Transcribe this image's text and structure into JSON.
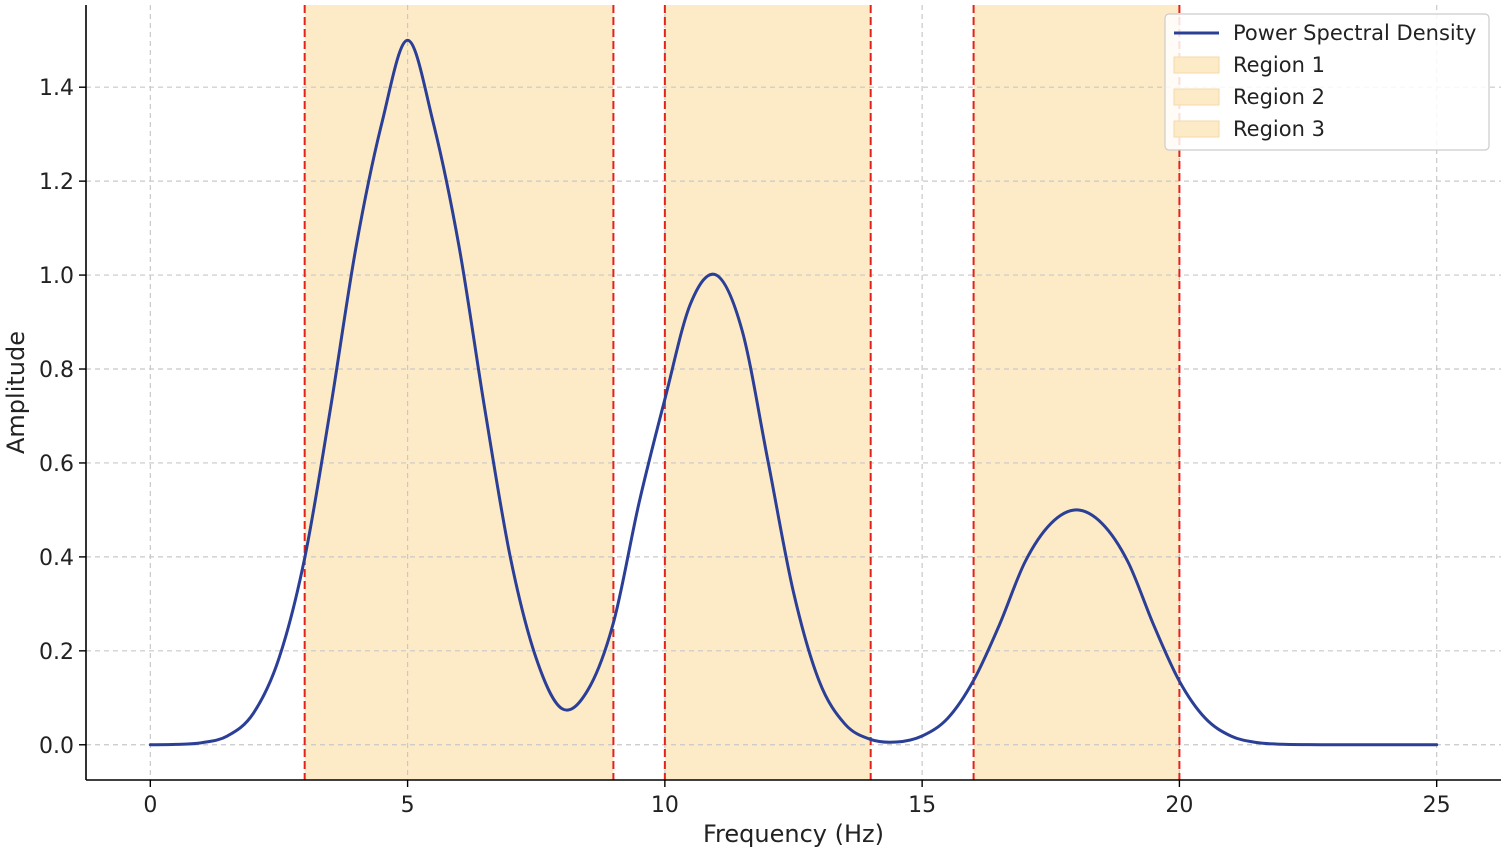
{
  "chart_data": {
    "type": "line",
    "title": "",
    "xlabel": "Frequency (Hz)",
    "ylabel": "Amplitude",
    "xlim": [
      -1.25,
      26.25
    ],
    "ylim": [
      -0.075,
      1.575
    ],
    "x_ticks": [
      0,
      5,
      10,
      15,
      20,
      25
    ],
    "x_tick_labels": [
      "0",
      "5",
      "10",
      "15",
      "20",
      "25"
    ],
    "y_ticks": [
      0.0,
      0.2,
      0.4,
      0.6,
      0.8,
      1.0,
      1.2,
      1.4
    ],
    "y_tick_labels": [
      "0.0",
      "0.2",
      "0.4",
      "0.6",
      "0.8",
      "1.0",
      "1.2",
      "1.4"
    ],
    "grid": true,
    "legend_position": "top-right",
    "series": [
      {
        "name": "Power Spectral Density",
        "color": "#2b3f96",
        "x": [
          0,
          0.5,
          1,
          1.5,
          2,
          2.5,
          3,
          3.5,
          4,
          4.5,
          5,
          5.5,
          6,
          6.5,
          7,
          7.5,
          8,
          8.5,
          9,
          9.5,
          10,
          10.5,
          11,
          11.5,
          12,
          12.5,
          13,
          13.5,
          14,
          14.5,
          15,
          15.5,
          16,
          16.5,
          17,
          17.5,
          18,
          18.5,
          19,
          19.5,
          20,
          20.5,
          21,
          21.5,
          22,
          22.5,
          23,
          23.5,
          24,
          24.5,
          25
        ],
        "y": [
          0.0001,
          0.0008,
          0.0044,
          0.0189,
          0.0666,
          0.1839,
          0.3975,
          0.7152,
          1.0609,
          1.3238,
          1.5,
          1.3238,
          1.0609,
          0.7152,
          0.3975,
          0.1839,
          0.0769,
          0.1159,
          0.2597,
          0.5159,
          0.7356,
          0.9394,
          1.0,
          0.8825,
          0.6065,
          0.3247,
          0.1353,
          0.0441,
          0.0113,
          0.0058,
          0.0187,
          0.0568,
          0.1371,
          0.2548,
          0.3894,
          0.4707,
          0.5,
          0.4707,
          0.3894,
          0.2548,
          0.1353,
          0.0568,
          0.0187,
          0.0048,
          0.001,
          0.0002,
          0.0,
          0.0,
          0.0,
          0.0,
          0.0
        ]
      }
    ],
    "regions": [
      {
        "name": "Region 1",
        "x_start": 3,
        "x_end": 9,
        "fill": "#fdebc8",
        "border": "#e3231b"
      },
      {
        "name": "Region 2",
        "x_start": 10,
        "x_end": 14,
        "fill": "#fdebc8",
        "border": "#e3231b"
      },
      {
        "name": "Region 3",
        "x_start": 16,
        "x_end": 20,
        "fill": "#fdebc8",
        "border": "#e3231b"
      }
    ]
  }
}
